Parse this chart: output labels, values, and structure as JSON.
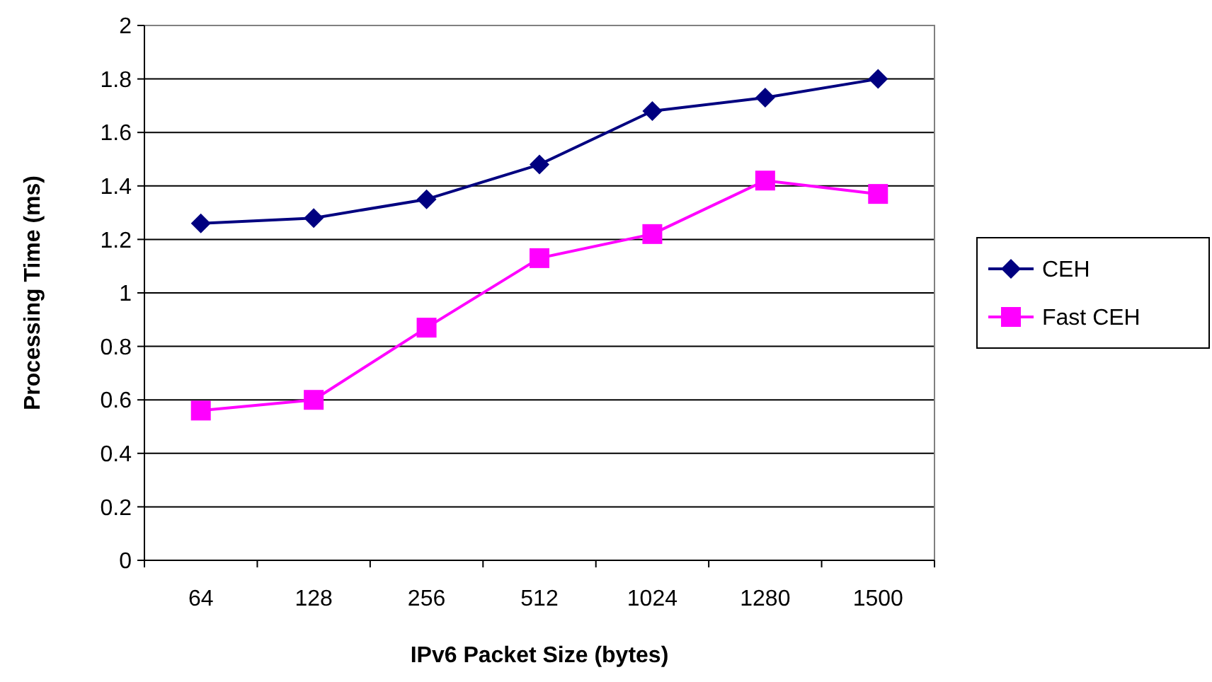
{
  "chart_data": {
    "type": "line",
    "xlabel": "IPv6 Packet Size (bytes)",
    "ylabel": "Processing Time (ms)",
    "categories": [
      "64",
      "128",
      "256",
      "512",
      "1024",
      "1280",
      "1500"
    ],
    "series": [
      {
        "name": "CEH",
        "color": "#000080",
        "marker": "diamond",
        "values": [
          1.26,
          1.28,
          1.35,
          1.48,
          1.68,
          1.73,
          1.8
        ]
      },
      {
        "name": "Fast CEH",
        "color": "#ff00ff",
        "marker": "square",
        "values": [
          0.56,
          0.6,
          0.87,
          1.13,
          1.22,
          1.42,
          1.37
        ]
      }
    ],
    "ylim": [
      0,
      2
    ],
    "yticks": [
      0,
      0.2,
      0.4,
      0.6,
      0.8,
      1,
      1.2,
      1.4,
      1.6,
      1.8,
      2
    ],
    "grid": "y",
    "legend": "right"
  }
}
